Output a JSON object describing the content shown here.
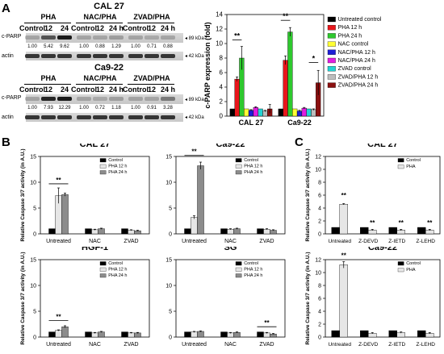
{
  "panels": {
    "a": "A",
    "b": "B",
    "c": "C"
  },
  "blots": [
    {
      "cell": "CAL 27",
      "groups": [
        "PHA",
        "NAC/PHA",
        "ZVAD/PHA"
      ],
      "lanes": [
        "Control",
        "12",
        "24",
        "Control",
        "12",
        "24 h",
        "Control",
        "12",
        "24 h"
      ],
      "row1": "c-PARP",
      "row2": "actin",
      "kda1": "◂ 89 kDa",
      "kda2": "◂ 42 kDa",
      "quant": [
        "1.00",
        "5.42",
        "9.62",
        "1.00",
        "0.88",
        "1.29",
        "1.00",
        "0.71",
        "0.88"
      ]
    },
    {
      "cell": "Ca9-22",
      "groups": [
        "PHA",
        "NAC/PHA",
        "ZVAD/PHA"
      ],
      "lanes": [
        "Control",
        "12",
        "24",
        "Control",
        "12",
        "24 h",
        "Control",
        "12",
        "24 h"
      ],
      "row1": "c-PARP",
      "row2": "actin",
      "kda1": "◂ 89 kDa",
      "kda2": "◂ 42 kDa",
      "quant": [
        "1.00",
        "7.93",
        "12.29",
        "1.00",
        "0.72",
        "1.18",
        "1.00",
        "0.91",
        "3.28"
      ]
    }
  ],
  "chart_data": [
    {
      "id": "A-bar",
      "type": "bar",
      "ylabel": "c-PARP expression (fold)",
      "ylim": [
        0,
        14
      ],
      "yticks": [
        0,
        2,
        4,
        6,
        8,
        10,
        12,
        14
      ],
      "categories": [
        "CAL 27",
        "Ca9-22"
      ],
      "series": [
        {
          "name": "Untreated control",
          "color": "#000000",
          "values": [
            1.0,
            1.0
          ],
          "err": [
            0,
            0
          ]
        },
        {
          "name": "PHA 12 h",
          "color": "#e8161b",
          "values": [
            5.1,
            7.7
          ],
          "err": [
            0.3,
            0.6
          ]
        },
        {
          "name": "PHA 24 h",
          "color": "#2ec92e",
          "values": [
            8.0,
            11.6
          ],
          "err": [
            1.6,
            0.6
          ]
        },
        {
          "name": "NAC control",
          "color": "#ffff33",
          "values": [
            1.0,
            1.0
          ],
          "err": [
            0,
            0
          ]
        },
        {
          "name": "NAC/PHA 12 h",
          "color": "#1f1fd6",
          "values": [
            0.8,
            0.7
          ],
          "err": [
            0.1,
            0.1
          ]
        },
        {
          "name": "NAC/PHA 24 h",
          "color": "#e01ee0",
          "values": [
            1.2,
            1.1
          ],
          "err": [
            0.1,
            0.1
          ]
        },
        {
          "name": "ZVAD control",
          "color": "#22d3d3",
          "values": [
            1.0,
            1.0
          ],
          "err": [
            0,
            0
          ]
        },
        {
          "name": "ZVAD/PHA 12 h",
          "color": "#bdbdbd",
          "values": [
            0.7,
            0.9
          ],
          "err": [
            0.1,
            0.1
          ]
        },
        {
          "name": "ZVAD/PHA 24 h",
          "color": "#8b1010",
          "values": [
            1.0,
            4.6
          ],
          "err": [
            0.6,
            1.7
          ]
        }
      ],
      "sig": [
        "**",
        "**",
        "*"
      ]
    },
    {
      "id": "B1",
      "type": "bar",
      "title": "CAL 27",
      "ylabel": "Relative Caspase 3/7 activity (in A.U.)",
      "ylim": [
        0,
        15
      ],
      "yticks": [
        0,
        5,
        10,
        15
      ],
      "categories": [
        "Untreated",
        "NAC",
        "ZVAD"
      ],
      "series": [
        {
          "name": "Control",
          "color": "#000000",
          "values": [
            1.0,
            1.0,
            1.0
          ],
          "err": [
            0,
            0,
            0
          ]
        },
        {
          "name": "PHA 12 h",
          "color": "#e6e6e6",
          "values": [
            7.4,
            0.8,
            0.7
          ],
          "err": [
            1.5,
            0.1,
            0.1
          ]
        },
        {
          "name": "PHA 24 h",
          "color": "#8c8c8c",
          "values": [
            7.6,
            1.0,
            0.6
          ],
          "err": [
            0.3,
            0.1,
            0.1
          ]
        }
      ],
      "sig": [
        "**"
      ]
    },
    {
      "id": "B2",
      "type": "bar",
      "title": "Ca9-22",
      "ylabel": "",
      "ylim": [
        0,
        15
      ],
      "yticks": [
        0,
        5,
        10,
        15
      ],
      "categories": [
        "Untreated",
        "NAC",
        "ZVAD"
      ],
      "series": [
        {
          "name": "Control",
          "color": "#000000",
          "values": [
            1.0,
            1.0,
            1.0
          ],
          "err": [
            0,
            0,
            0
          ]
        },
        {
          "name": "PHA 12 h",
          "color": "#e6e6e6",
          "values": [
            3.2,
            0.9,
            0.9
          ],
          "err": [
            0.3,
            0.1,
            0.1
          ]
        },
        {
          "name": "PHA 24 h",
          "color": "#8c8c8c",
          "values": [
            13.2,
            1.0,
            0.7
          ],
          "err": [
            0.7,
            0.1,
            0.1
          ]
        }
      ],
      "sig": [
        "**"
      ]
    },
    {
      "id": "B3",
      "type": "bar",
      "title": "HGF-1",
      "ylabel": "Relative Caspase 3/7 activity (in A.U.)",
      "ylim": [
        0,
        15
      ],
      "yticks": [
        0,
        5,
        10,
        15
      ],
      "categories": [
        "Untreated",
        "NAC",
        "ZVAD"
      ],
      "series": [
        {
          "name": "Control",
          "color": "#000000",
          "values": [
            1.0,
            1.0,
            1.0
          ],
          "err": [
            0,
            0,
            0
          ]
        },
        {
          "name": "PHA 12 h",
          "color": "#e6e6e6",
          "values": [
            1.3,
            0.8,
            0.8
          ],
          "err": [
            0.1,
            0.1,
            0.1
          ]
        },
        {
          "name": "PHA 24 h",
          "color": "#8c8c8c",
          "values": [
            2.0,
            1.0,
            0.8
          ],
          "err": [
            0.2,
            0.1,
            0.1
          ]
        }
      ],
      "sig": [
        "**"
      ]
    },
    {
      "id": "B4",
      "type": "bar",
      "title": "SG",
      "ylabel": "",
      "ylim": [
        0,
        15
      ],
      "yticks": [
        0,
        5,
        10,
        15
      ],
      "categories": [
        "Untreated",
        "NAC",
        "ZVAD"
      ],
      "series": [
        {
          "name": "Control",
          "color": "#000000",
          "values": [
            1.0,
            1.0,
            1.0
          ],
          "err": [
            0,
            0,
            0
          ]
        },
        {
          "name": "PHA 12 h",
          "color": "#e6e6e6",
          "values": [
            1.0,
            0.8,
            0.8
          ],
          "err": [
            0.1,
            0.1,
            0.1
          ]
        },
        {
          "name": "PHA 24 h",
          "color": "#8c8c8c",
          "values": [
            1.1,
            0.9,
            0.6
          ],
          "err": [
            0.1,
            0.1,
            0.1
          ]
        }
      ],
      "sig": [
        "**"
      ]
    },
    {
      "id": "C1",
      "type": "bar",
      "title": "CAL 27",
      "ylabel": "Relative Caspase 3/7 activity (in A.U.)",
      "ylim": [
        0,
        12
      ],
      "yticks": [
        0,
        2,
        4,
        6,
        8,
        10,
        12
      ],
      "categories": [
        "Untreated",
        "Z-DEVD",
        "Z-IETD",
        "Z-LEHD"
      ],
      "series": [
        {
          "name": "Control",
          "color": "#000000",
          "values": [
            1.0,
            1.0,
            1.0,
            1.0
          ],
          "err": [
            0,
            0,
            0,
            0
          ]
        },
        {
          "name": "PHA",
          "color": "#e6e6e6",
          "values": [
            4.6,
            0.6,
            0.6,
            0.6
          ],
          "err": [
            0.1,
            0.1,
            0.1,
            0.1
          ]
        }
      ],
      "sig": [
        "**",
        "**",
        "**",
        "**"
      ]
    },
    {
      "id": "C2",
      "type": "bar",
      "title": "Ca9-22",
      "ylabel": "Relative Caspase 3/7 activity (in A.U.)",
      "ylim": [
        0,
        12
      ],
      "yticks": [
        0,
        2,
        4,
        6,
        8,
        10,
        12
      ],
      "categories": [
        "Untreated",
        "Z-DEVD",
        "Z-IETD",
        "Z-LEHD"
      ],
      "series": [
        {
          "name": "Control",
          "color": "#000000",
          "values": [
            1.0,
            1.0,
            1.0,
            1.0
          ],
          "err": [
            0,
            0,
            0,
            0
          ]
        },
        {
          "name": "PHA",
          "color": "#e6e6e6",
          "values": [
            11.2,
            0.6,
            0.7,
            0.6
          ],
          "err": [
            0.5,
            0.1,
            0.1,
            0.1
          ]
        }
      ],
      "sig": [
        "**"
      ]
    }
  ]
}
